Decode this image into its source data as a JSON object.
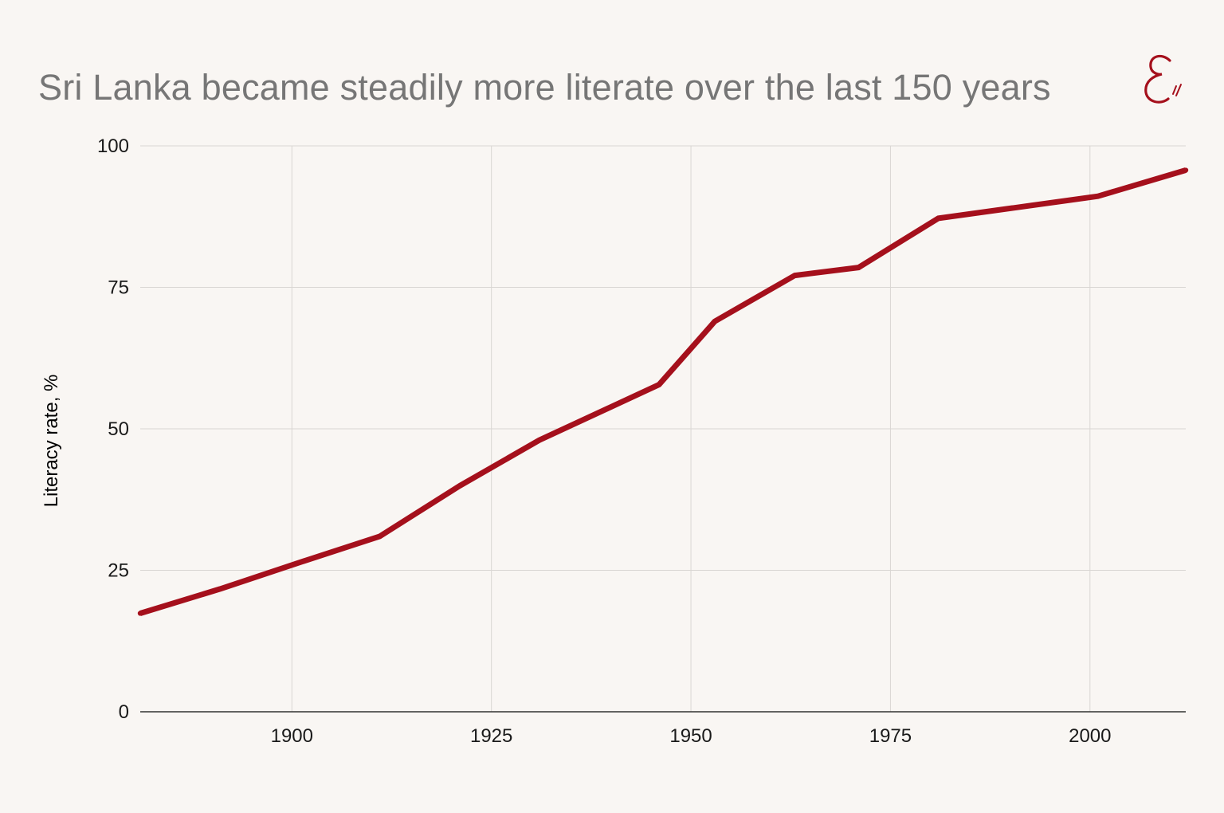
{
  "title": "Sri Lanka became steadily more literate over the last 150 years",
  "logo": {
    "icon": "economy-logo-icon",
    "color": "#a5101c"
  },
  "chart_data": {
    "type": "line",
    "title": "Sri Lanka became steadily more literate over the last 150 years",
    "xlabel": "",
    "ylabel": "Literacy rate, %",
    "xlim": [
      1881,
      2012
    ],
    "ylim": [
      0,
      100
    ],
    "xticks": [
      1900,
      1925,
      1950,
      1975,
      2000
    ],
    "yticks": [
      0,
      25,
      50,
      75,
      100
    ],
    "grid": true,
    "series": [
      {
        "color": "#a5101c",
        "x": [
          1881,
          1891,
          1901,
          1911,
          1921,
          1931,
          1946,
          1953,
          1963,
          1971,
          1981,
          2001,
          2012
        ],
        "y": [
          17.4,
          21.7,
          26.4,
          31.0,
          39.9,
          48.0,
          57.8,
          69.0,
          77.1,
          78.5,
          87.2,
          91.1,
          95.7
        ]
      }
    ]
  }
}
